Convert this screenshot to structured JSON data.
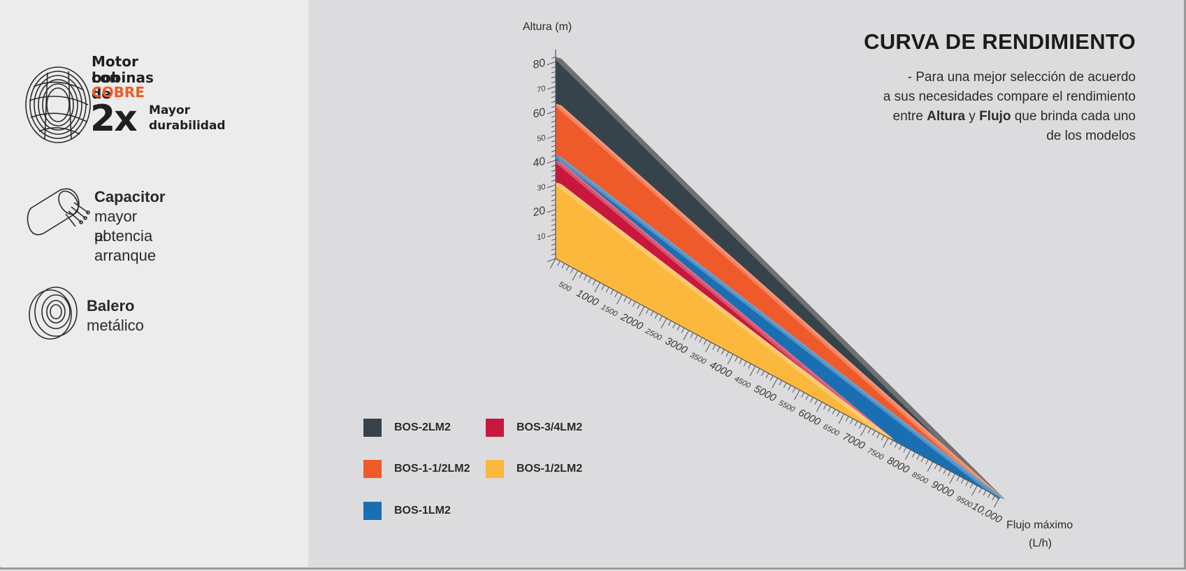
{
  "features": {
    "motor": {
      "title_line1": "Motor con",
      "title_line2": "bobinas de",
      "highlight": "COBRE",
      "big": "2x",
      "sub_line1": "Mayor",
      "sub_line2": "durabilidad",
      "icon": "copper-coil-icon"
    },
    "capacitor": {
      "title": "Capacitor",
      "line1": "mayor potencia",
      "line2": "al arranque",
      "icon": "capacitor-icon"
    },
    "bearing": {
      "title": "Balero",
      "line1": "metálico",
      "icon": "bearing-icon"
    }
  },
  "chart_header": {
    "title": "CURVA DE RENDIMIENTO",
    "desc_line1": "- Para una mejor selección de acuerdo",
    "desc_line2": "a sus necesidades compare el rendimiento",
    "desc_pre": "entre ",
    "desc_bold1": "Altura",
    "desc_mid": " y ",
    "desc_bold2": "Flujo",
    "desc_post": " que brinda cada uno",
    "desc_line4": "de los modelos"
  },
  "colors": {
    "BOS-2LM2": "#37434a",
    "BOS-1-1/2LM2": "#ef5a2a",
    "BOS-1LM2": "#1a6fb3",
    "BOS-3/4LM2": "#c8183d",
    "BOS-1/2LM2": "#fbb83c"
  },
  "chart_data": {
    "type": "area",
    "ylabel": "Altura (m)",
    "xlabel_line1": "Flujo máximo",
    "xlabel_line2": "(L/h)",
    "xlim": [
      0,
      10000
    ],
    "ylim": [
      0,
      80
    ],
    "y_ticks": [
      "10",
      "20",
      "30",
      "40",
      "50",
      "60",
      "70",
      "80"
    ],
    "x_ticks": [
      "500",
      "1000",
      "1500",
      "2000",
      "2500",
      "3000",
      "3500",
      "4000",
      "4500",
      "5000",
      "5500",
      "6000",
      "6500",
      "7000",
      "7500",
      "8000",
      "8500",
      "9000",
      "9500",
      "10,000"
    ],
    "series": [
      {
        "name": "BOS-2LM2",
        "x": [
          0,
          10000
        ],
        "y": [
          82,
          0
        ]
      },
      {
        "name": "BOS-1-1/2LM2",
        "x": [
          0,
          10000
        ],
        "y": [
          63,
          0
        ]
      },
      {
        "name": "BOS-1LM2",
        "x": [
          0,
          10000
        ],
        "y": [
          42,
          0
        ]
      },
      {
        "name": "BOS-3/4LM2",
        "x": [
          0,
          7500
        ],
        "y": [
          40,
          0
        ]
      },
      {
        "name": "BOS-1/2LM2",
        "x": [
          0,
          7500
        ],
        "y": [
          31,
          0
        ]
      }
    ]
  },
  "legend": [
    {
      "label": "BOS-2LM2",
      "color": "#37434a"
    },
    {
      "label": "BOS-3/4LM2",
      "color": "#c8183d"
    },
    {
      "label": "BOS-1-1/2LM2",
      "color": "#ef5a2a"
    },
    {
      "label": "BOS-1/2LM2",
      "color": "#fbb83c"
    },
    {
      "label": "BOS-1LM2",
      "color": "#1a6fb3"
    }
  ]
}
